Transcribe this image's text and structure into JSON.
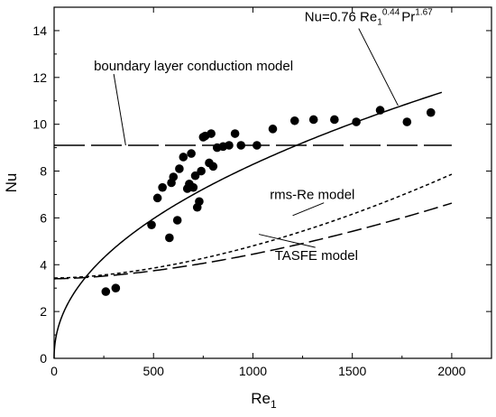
{
  "chart_data": {
    "type": "scatter",
    "xlabel": "Re",
    "xlabel_sub": "1",
    "ylabel": "Nu",
    "xlim": [
      0,
      2200
    ],
    "ylim": [
      0,
      15
    ],
    "xticks": [
      0,
      500,
      1000,
      1500,
      2000
    ],
    "yticks": [
      0,
      2,
      4,
      6,
      8,
      10,
      12,
      14
    ],
    "grid": false,
    "series": [
      {
        "kind": "points",
        "x": [
          260,
          310,
          490,
          520,
          545,
          580,
          590,
          600,
          620,
          630,
          650,
          670,
          680,
          690,
          700,
          710,
          720,
          730,
          740,
          750,
          760,
          780,
          790,
          800,
          820,
          850,
          880,
          910,
          940,
          1020,
          1100,
          1210,
          1305,
          1410,
          1520,
          1640,
          1775,
          1895
        ],
        "y": [
          2.85,
          3.0,
          5.7,
          6.85,
          7.3,
          5.15,
          7.5,
          7.75,
          5.9,
          8.1,
          8.6,
          7.25,
          7.45,
          8.75,
          7.3,
          7.8,
          6.45,
          6.7,
          8.0,
          9.45,
          9.5,
          8.35,
          9.6,
          8.2,
          9.0,
          9.05,
          9.1,
          9.6,
          9.1,
          9.1,
          9.8,
          10.15,
          10.2,
          10.2,
          10.1,
          10.6,
          10.1,
          10.5
        ]
      },
      {
        "kind": "line",
        "style": "solid",
        "formula": "0.3148*x^0.4734",
        "x_range": [
          0,
          1950
        ]
      },
      {
        "kind": "line",
        "style": "long-dash",
        "constant": 9.1,
        "x_range": [
          0,
          2000
        ]
      },
      {
        "kind": "line",
        "style": "short-dash",
        "formula": "3.43 + 0.0000117*x^1.69",
        "x_range": [
          0,
          2000
        ]
      },
      {
        "kind": "line",
        "style": "dash",
        "formula": "3.40 + 0.0000145*x^1.62",
        "x_range": [
          0,
          2000
        ]
      }
    ],
    "annotations": [
      {
        "text": "boundary layer conduction model",
        "x": 200,
        "y": 12.3,
        "pointer_to": [
          360,
          9.1
        ]
      },
      {
        "text": "rms-Re model",
        "x": 1085,
        "y": 6.8,
        "pointer_to": [
          1200,
          6.1
        ]
      },
      {
        "text": "TASFE model",
        "x": 1110,
        "y": 4.2,
        "pointer_to": [
          1030,
          5.3
        ]
      },
      {
        "text_base": "Nu=0.76 Re",
        "sub1": "1",
        "sup1": "0.44",
        "mid": "Pr",
        "sup2": "1.67",
        "x": 1260,
        "y": 14.4,
        "pointer_to": [
          1730,
          10.8
        ]
      }
    ]
  }
}
